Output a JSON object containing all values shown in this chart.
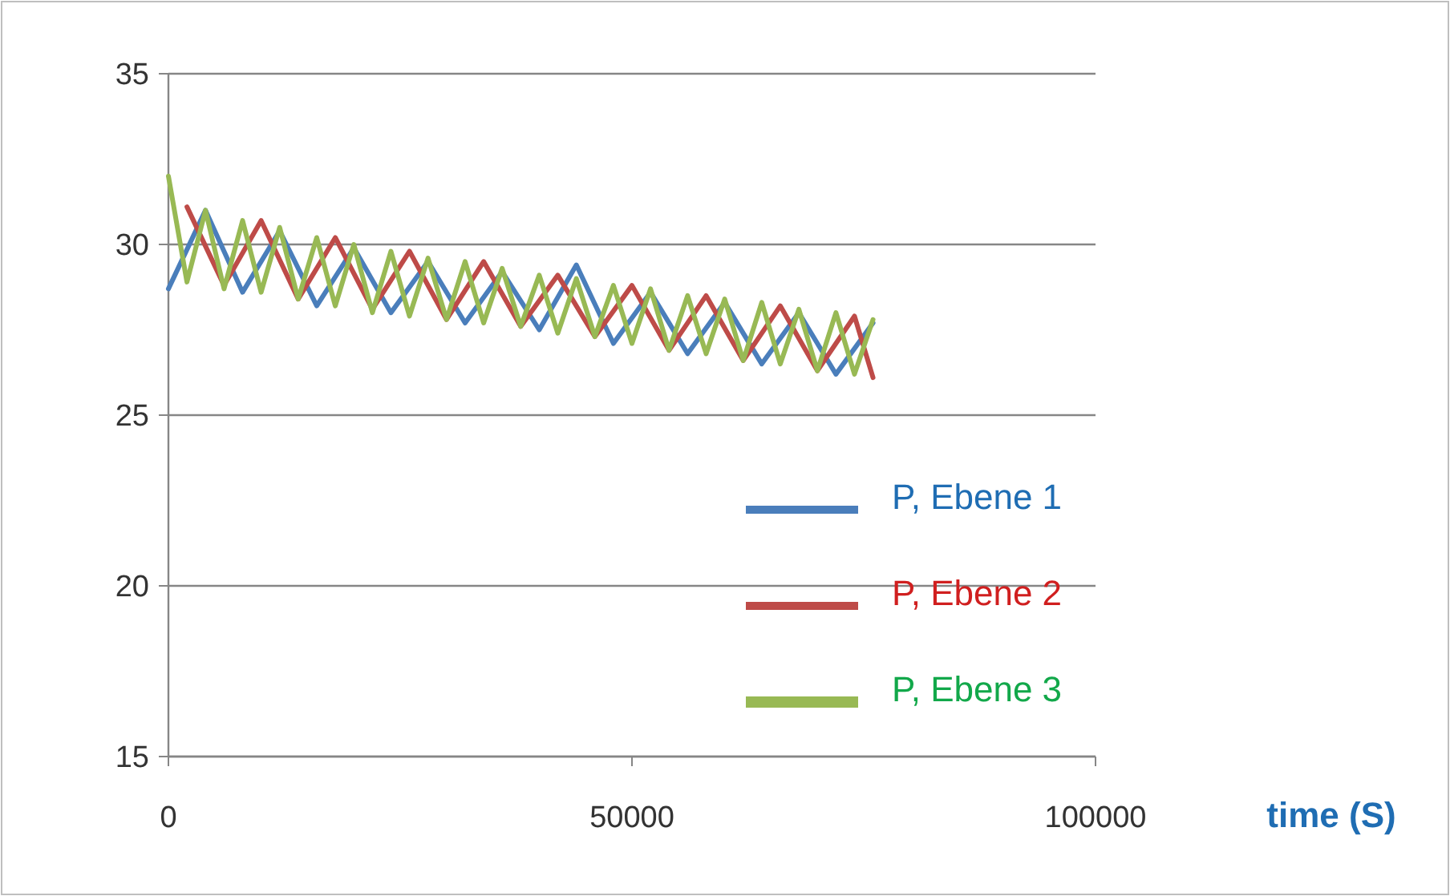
{
  "chart_data": {
    "type": "line",
    "xlabel": "time (S)",
    "xlim": [
      0,
      100000
    ],
    "xticks": [
      0,
      50000,
      100000
    ],
    "ylim": [
      15,
      35
    ],
    "yticks": [
      15,
      20,
      25,
      30,
      35
    ],
    "grid": "y",
    "legend": "right",
    "marker": "none",
    "line_style": "solid",
    "series": [
      {
        "name": "P, Ebene 1",
        "color": "#4a7ebb",
        "x": [
          0,
          4000,
          8000,
          12000,
          16000,
          20000,
          24000,
          28000,
          32000,
          36000,
          40000,
          44000,
          48000,
          52000,
          56000,
          60000,
          64000,
          68000,
          72000,
          76000
        ],
        "values": [
          28.7,
          31.0,
          28.6,
          30.4,
          28.2,
          29.9,
          28.0,
          29.5,
          27.7,
          29.2,
          27.5,
          29.4,
          27.1,
          28.6,
          26.8,
          28.3,
          26.5,
          28.0,
          26.2,
          27.7
        ]
      },
      {
        "name": "P, Ebene 2",
        "color": "#be4b48",
        "x": [
          2000,
          6000,
          10000,
          14000,
          18000,
          22000,
          26000,
          30000,
          34000,
          38000,
          42000,
          46000,
          50000,
          54000,
          58000,
          62000,
          66000,
          70000,
          74000,
          76000
        ],
        "values": [
          31.1,
          28.8,
          30.7,
          28.4,
          30.2,
          28.1,
          29.8,
          27.8,
          29.5,
          27.6,
          29.1,
          27.3,
          28.8,
          26.9,
          28.5,
          26.6,
          28.2,
          26.3,
          27.9,
          26.1
        ]
      },
      {
        "name": "P, Ebene 3",
        "color": "#98b954",
        "x": [
          0,
          2000,
          4000,
          6000,
          8000,
          10000,
          12000,
          14000,
          16000,
          18000,
          20000,
          22000,
          24000,
          26000,
          28000,
          30000,
          32000,
          34000,
          36000,
          38000,
          40000,
          42000,
          44000,
          46000,
          48000,
          50000,
          52000,
          54000,
          56000,
          58000,
          60000,
          62000,
          64000,
          66000,
          68000,
          70000,
          72000,
          74000,
          76000
        ],
        "values": [
          32.0,
          28.9,
          31.0,
          28.7,
          30.7,
          28.6,
          30.5,
          28.4,
          30.2,
          28.2,
          30.0,
          28.0,
          29.8,
          27.9,
          29.6,
          27.8,
          29.5,
          27.7,
          29.3,
          27.6,
          29.1,
          27.4,
          29.0,
          27.3,
          28.8,
          27.1,
          28.7,
          26.9,
          28.5,
          26.8,
          28.4,
          26.6,
          28.3,
          26.5,
          28.1,
          26.3,
          28.0,
          26.2,
          27.8
        ]
      }
    ]
  }
}
